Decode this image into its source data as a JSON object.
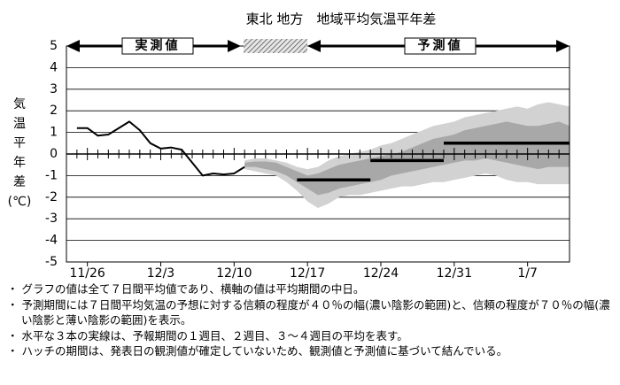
{
  "chart_data": {
    "type": "line",
    "title": "東北 地方　地域平均気温平年差",
    "ylabel": [
      "気",
      "温",
      "平",
      "年",
      "差",
      "(℃)"
    ],
    "observed_label": "実測値",
    "forecast_label": "予測値",
    "categories": [
      null,
      null,
      "11/26",
      null,
      null,
      null,
      null,
      null,
      null,
      "12/3",
      null,
      null,
      null,
      null,
      null,
      null,
      "12/10",
      null,
      null,
      null,
      null,
      null,
      null,
      "12/17",
      null,
      null,
      null,
      null,
      null,
      null,
      "12/24",
      null,
      null,
      null,
      null,
      null,
      null,
      "12/31",
      null,
      null,
      null,
      null,
      null,
      null,
      "1/7",
      null,
      null,
      null,
      null
    ],
    "ylim": [
      -5,
      5
    ],
    "yticks": [
      -5,
      -4,
      -3,
      -2,
      -1,
      0,
      1,
      2,
      3,
      4,
      5
    ],
    "grid": true,
    "bands": [
      {
        "color": "#d2d2d2",
        "low": [
          null,
          null,
          null,
          null,
          null,
          null,
          null,
          null,
          null,
          null,
          null,
          null,
          null,
          null,
          null,
          null,
          null,
          -0.7,
          -0.8,
          -0.9,
          -1.0,
          -1.3,
          -1.7,
          -2.2,
          -2.5,
          -2.3,
          -2.0,
          -1.9,
          -1.9,
          -1.8,
          -1.7,
          -1.6,
          -1.5,
          -1.5,
          -1.4,
          -1.3,
          -1.3,
          -1.2,
          -1.1,
          -1.0,
          -0.9,
          -1.0,
          -1.2,
          -1.3,
          -1.3,
          -1.4,
          -1.4,
          -1.4,
          -1.4
        ],
        "high": [
          null,
          null,
          null,
          null,
          null,
          null,
          null,
          null,
          null,
          null,
          null,
          null,
          null,
          null,
          null,
          null,
          null,
          -0.3,
          -0.2,
          -0.2,
          -0.3,
          -0.4,
          -0.6,
          -0.7,
          -0.6,
          -0.3,
          -0.1,
          0.0,
          0.1,
          0.2,
          0.4,
          0.5,
          0.7,
          0.9,
          1.1,
          1.3,
          1.4,
          1.5,
          1.7,
          1.8,
          1.9,
          2.0,
          2.1,
          2.2,
          2.1,
          2.3,
          2.4,
          2.3,
          2.2
        ]
      },
      {
        "color": "#a8a8a8",
        "low": [
          null,
          null,
          null,
          null,
          null,
          null,
          null,
          null,
          null,
          null,
          null,
          null,
          null,
          null,
          null,
          null,
          null,
          -0.6,
          -0.6,
          -0.7,
          -0.8,
          -1.0,
          -1.3,
          -1.6,
          -1.9,
          -1.8,
          -1.6,
          -1.5,
          -1.4,
          -1.3,
          -1.2,
          -1.0,
          -0.9,
          -0.8,
          -0.7,
          -0.6,
          -0.5,
          -0.4,
          -0.3,
          -0.3,
          -0.2,
          -0.3,
          -0.4,
          -0.5,
          -0.6,
          -0.7,
          -0.6,
          -0.6,
          -0.6
        ],
        "high": [
          null,
          null,
          null,
          null,
          null,
          null,
          null,
          null,
          null,
          null,
          null,
          null,
          null,
          null,
          null,
          null,
          null,
          -0.4,
          -0.35,
          -0.35,
          -0.4,
          -0.6,
          -0.8,
          -1.0,
          -0.9,
          -0.7,
          -0.5,
          -0.4,
          -0.3,
          -0.2,
          -0.1,
          0.0,
          0.1,
          0.3,
          0.5,
          0.7,
          0.8,
          0.9,
          1.1,
          1.2,
          1.3,
          1.4,
          1.5,
          1.4,
          1.3,
          1.3,
          1.4,
          1.5,
          1.3
        ]
      }
    ],
    "series": [
      {
        "color": "#000000",
        "line_width": 2,
        "values": [
          null,
          1.2,
          1.2,
          0.85,
          0.9,
          1.2,
          1.5,
          1.1,
          0.5,
          0.25,
          0.3,
          0.2,
          -0.4,
          -1.0,
          -0.9,
          -0.95,
          -0.9,
          -0.6,
          null,
          null,
          null,
          null,
          null,
          null,
          null,
          null,
          null,
          null,
          null,
          null,
          null,
          null,
          null,
          null,
          null,
          null,
          null,
          null,
          null,
          null,
          null,
          null,
          null,
          null,
          null,
          null,
          null,
          null,
          null
        ]
      },
      {
        "color": "#000000",
        "line_width": 3.5,
        "values": [
          null,
          null,
          null,
          null,
          null,
          null,
          null,
          null,
          null,
          null,
          null,
          null,
          null,
          null,
          null,
          null,
          null,
          null,
          null,
          null,
          null,
          null,
          -1.2,
          -1.2,
          -1.2,
          -1.2,
          -1.2,
          -1.2,
          -1.2,
          -1.2,
          null,
          null,
          null,
          null,
          null,
          null,
          null,
          null,
          null,
          null,
          null,
          null,
          null,
          null,
          null,
          null,
          null,
          null,
          null
        ]
      },
      {
        "color": "#000000",
        "line_width": 3.5,
        "values": [
          null,
          null,
          null,
          null,
          null,
          null,
          null,
          null,
          null,
          null,
          null,
          null,
          null,
          null,
          null,
          null,
          null,
          null,
          null,
          null,
          null,
          null,
          null,
          null,
          null,
          null,
          null,
          null,
          null,
          -0.3,
          -0.3,
          -0.3,
          -0.3,
          -0.3,
          -0.3,
          -0.3,
          -0.3,
          null,
          null,
          null,
          null,
          null,
          null,
          null,
          null,
          null,
          null,
          null,
          null
        ]
      },
      {
        "color": "#000000",
        "line_width": 3.5,
        "values": [
          null,
          null,
          null,
          null,
          null,
          null,
          null,
          null,
          null,
          null,
          null,
          null,
          null,
          null,
          null,
          null,
          null,
          null,
          null,
          null,
          null,
          null,
          null,
          null,
          null,
          null,
          null,
          null,
          null,
          null,
          null,
          null,
          null,
          null,
          null,
          null,
          0.5,
          0.5,
          0.5,
          0.5,
          0.5,
          0.5,
          0.5,
          0.5,
          0.5,
          0.5,
          0.5,
          0.5,
          0.5
        ]
      }
    ]
  },
  "notes": [
    "・ グラフの値は全て７日間平均値であり、横軸の値は平均期間の中日。",
    "・ 予測期間には７日間平均気温の予想に対する信頼の程度が４０％の幅(濃い陰影の範囲)と、信頼の程度が７０％の幅(濃い陰影と薄い陰影の範囲)を表示。",
    "・ 水平な３本の実線は、予報期間の１週目、２週目、３～４週目の平均を表す。",
    "・ ハッチの期間は、発表日の観測値が確定していないため、観測値と予測値に基づいて結んでいる。"
  ]
}
